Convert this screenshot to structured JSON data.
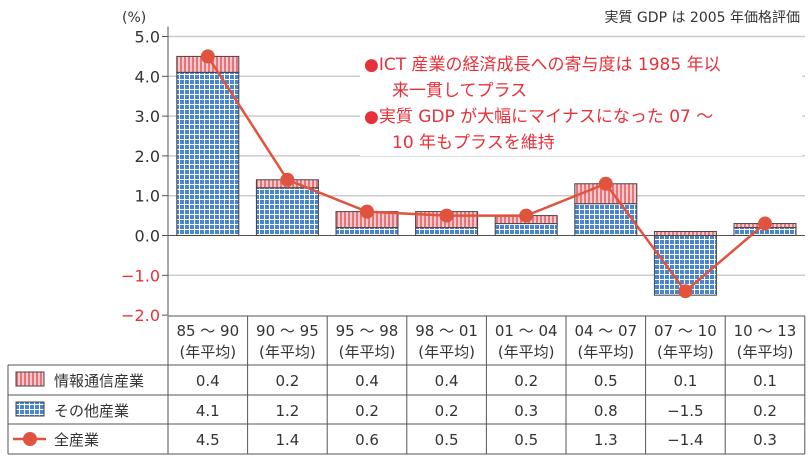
{
  "chart_data": {
    "type": "bar",
    "unit_label": "(%)",
    "note": "実質 GDP は 2005 年価格評価",
    "ylim": [
      -2.0,
      5.0
    ],
    "yticks": [
      "5.0",
      "4.0",
      "3.0",
      "2.0",
      "1.0",
      "0.0",
      "−1.0",
      "−2.0"
    ],
    "ytick_values": [
      5,
      4,
      3,
      2,
      1,
      0,
      -1,
      -2
    ],
    "categories": [
      "85 ～ 90",
      "90 ～ 95",
      "95 ～ 98",
      "98 ～ 01",
      "01 ～ 04",
      "04 ～ 07",
      "07 ～ 10",
      "10 ～ 13"
    ],
    "category_sub": "(年平均)",
    "series": [
      {
        "name": "情報通信産業",
        "kind": "bar-stripe",
        "color": "#e8747a",
        "values": [
          0.4,
          0.2,
          0.4,
          0.4,
          0.2,
          0.5,
          0.1,
          0.1
        ],
        "labels": [
          "0.4",
          "0.2",
          "0.4",
          "0.4",
          "0.2",
          "0.5",
          "0.1",
          "0.1"
        ]
      },
      {
        "name": "その他産業",
        "kind": "bar-grid",
        "color": "#4a86d0",
        "values": [
          4.1,
          1.2,
          0.2,
          0.2,
          0.3,
          0.8,
          -1.5,
          0.2
        ],
        "labels": [
          "4.1",
          "1.2",
          "0.2",
          "0.2",
          "0.3",
          "0.8",
          "−1.5",
          "0.2"
        ]
      },
      {
        "name": "全産業",
        "kind": "line",
        "color": "#e0533f",
        "values": [
          4.5,
          1.4,
          0.6,
          0.5,
          0.5,
          1.3,
          -1.4,
          0.3
        ],
        "labels": [
          "4.5",
          "1.4",
          "0.6",
          "0.5",
          "0.5",
          "1.3",
          "−1.4",
          "0.3"
        ]
      }
    ],
    "annotations": [
      "●ICT 産業の経済成長への寄与度は 1985 年以",
      "来一貫してプラス",
      "●実質 GDP が大幅にマイナスになった 07 ～",
      "10 年もプラスを維持"
    ]
  }
}
